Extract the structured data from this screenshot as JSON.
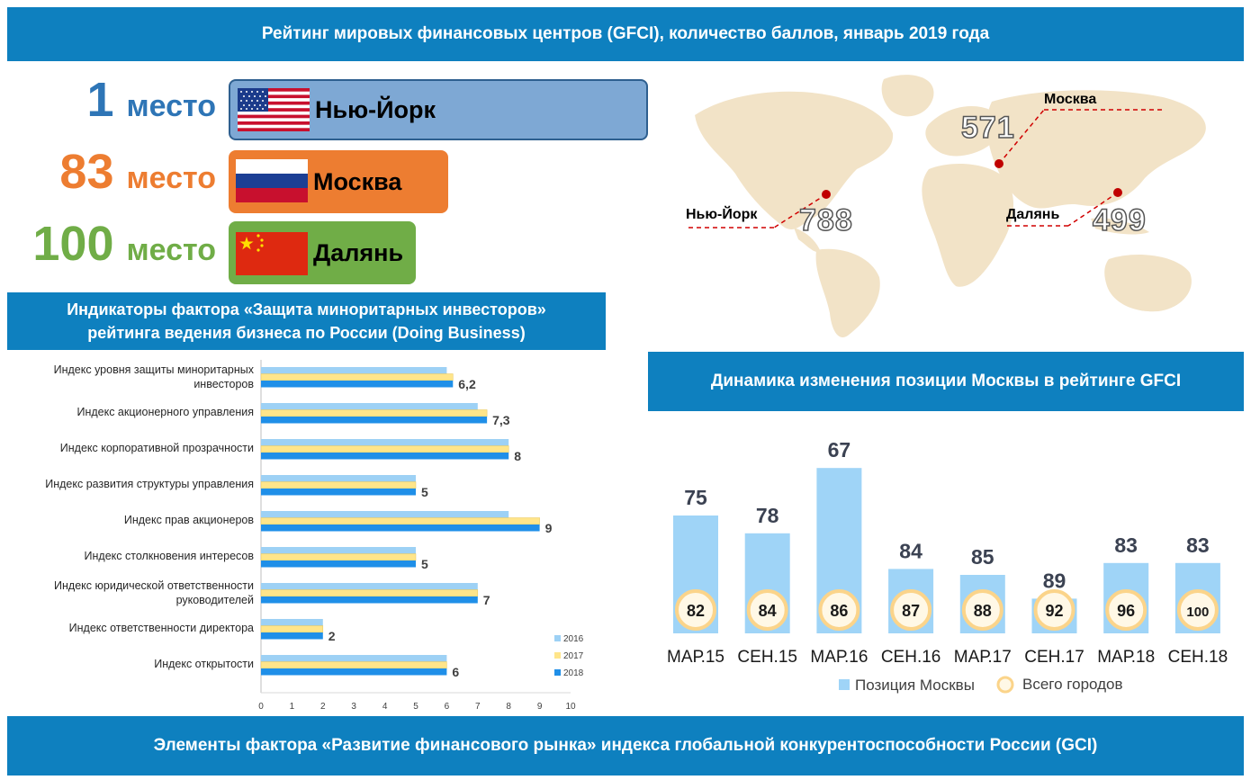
{
  "title": "Рейтинг мировых финансовых центров (GFCI), количество баллов, январь 2019 года",
  "ranking": [
    {
      "num": "1",
      "word": "место",
      "city": "Нью-Йорк",
      "color": "#2e75b6",
      "box_color": "#7ea8d4",
      "flag": "us-flag-icon"
    },
    {
      "num": "83",
      "word": "место",
      "city": "Москва",
      "color": "#ed7d31",
      "box_color": "#ed7d31",
      "flag": "russia-flag-icon"
    },
    {
      "num": "100",
      "word": "место",
      "city": "Далянь",
      "color": "#70ad47",
      "box_color": "#70ad47",
      "flag": "china-flag-icon"
    }
  ],
  "map": {
    "points": [
      {
        "city": "Москва",
        "score": "571"
      },
      {
        "city": "Нью-Йорк",
        "score": "788"
      },
      {
        "city": "Далянь",
        "score": "499"
      }
    ]
  },
  "indicators_title_line1": "Индикаторы фактора «Защита миноритарных инвесторов»",
  "indicators_title_line2": "рейтинга ведения бизнеса по России (Doing Business)",
  "dynamics_title": "Динамика изменения позиции Москвы в рейтинге GFCI",
  "footer": "Элементы фактора «Развитие финансового рынка» индекса глобальной конкурентоспособности России (GCI)",
  "chart_data": [
    {
      "type": "bar",
      "orientation": "horizontal",
      "categories": [
        [
          "Индекс уровня защиты миноритарных",
          "инвесторов"
        ],
        [
          "Индекс акционерного управления"
        ],
        [
          "Индекс корпоративной прозрачности"
        ],
        [
          "Индекс развития структуры управления"
        ],
        [
          "Индекс прав акционеров"
        ],
        [
          "Индекс столкновения интересов"
        ],
        [
          "Индекс юридической ответственности",
          "руководителей"
        ],
        [
          "Индекс ответственности директора"
        ],
        [
          "Индекс открытости"
        ]
      ],
      "series": [
        {
          "name": "2016",
          "color": "#9dd1f5",
          "values": [
            6,
            7,
            8,
            5,
            8,
            5,
            7,
            2,
            6
          ]
        },
        {
          "name": "2017",
          "color": "#ffe58a",
          "values": [
            6.2,
            7.3,
            8,
            5,
            9,
            5,
            7,
            2,
            6
          ]
        },
        {
          "name": "2018",
          "color": "#1f8fe8",
          "values": [
            6.2,
            7.3,
            8,
            5,
            9,
            5,
            7,
            2,
            6
          ]
        }
      ],
      "value_labels": [
        "6,2",
        "7,3",
        "8",
        "5",
        "9",
        "5",
        "7",
        "2",
        "6"
      ],
      "xlim": [
        0,
        10
      ],
      "x_ticks": [
        "0",
        "1",
        "2",
        "3",
        "4",
        "5",
        "6",
        "7",
        "8",
        "9",
        "10"
      ],
      "legend_position": "bottom-right"
    },
    {
      "type": "bar",
      "categories": [
        "МАР.15",
        "СЕН.15",
        "МАР.16",
        "СЕН.16",
        "МАР.17",
        "СЕН.17",
        "МАР.18",
        "СЕН.18"
      ],
      "series": [
        {
          "name": "Позиция Москвы",
          "color": "#9fd4f7",
          "values": [
            75,
            78,
            67,
            84,
            85,
            89,
            83,
            83
          ]
        },
        {
          "name": "Всего городов",
          "color": "#fbd48a",
          "values": [
            82,
            84,
            86,
            87,
            88,
            92,
            96,
            100
          ]
        }
      ],
      "axis_reversed": true,
      "legend_position": "bottom"
    }
  ]
}
